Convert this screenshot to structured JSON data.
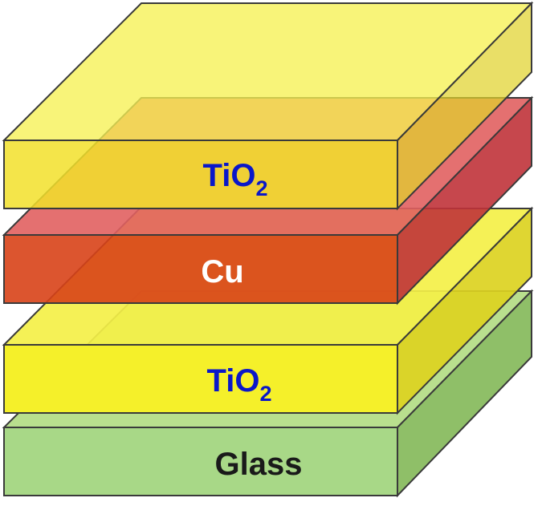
{
  "layers": [
    {
      "id": "glass",
      "label": "Glass",
      "subscript": "",
      "top_color": "#b9df8e",
      "front_color": "#a8d887",
      "side_color": "#8fbf68",
      "text_color": "#1a1a1a"
    },
    {
      "id": "tio2-bottom",
      "label": "TiO",
      "subscript": "2",
      "top_color": "#f4f048",
      "front_color": "#f5f02a",
      "side_color": "#dcd321",
      "text_color": "#0a17c9"
    },
    {
      "id": "cu",
      "label": "Cu",
      "subscript": "",
      "top_color": "#e16060",
      "front_color": "#d84318",
      "side_color": "#c0333a",
      "text_color": "#ffffff"
    },
    {
      "id": "tio2-top",
      "label": "TiO",
      "subscript": "2",
      "top_color": "#f6f153",
      "front_color": "#f2e12a",
      "side_color": "#e1d32d",
      "text_color": "#0a17c9"
    }
  ]
}
